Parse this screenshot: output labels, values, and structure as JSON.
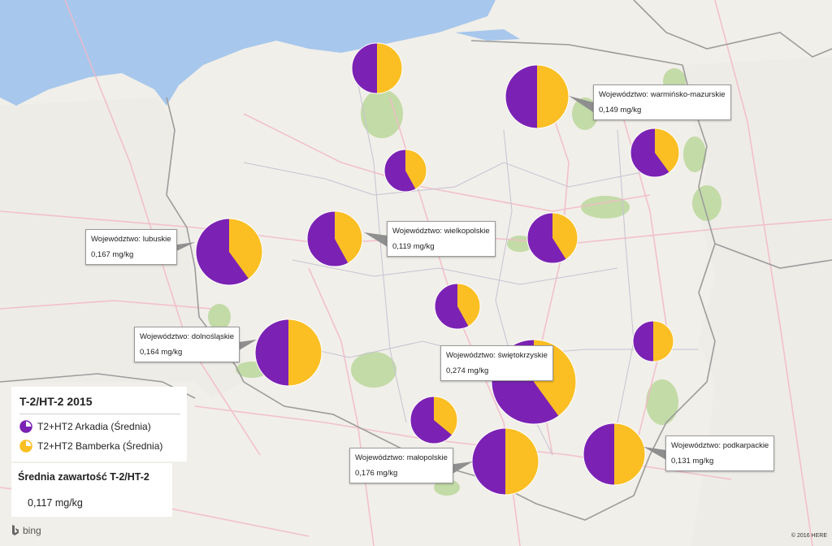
{
  "legend": {
    "title": "T-2/HT-2 2015",
    "series": [
      {
        "label": "T2+HT2 Arkadia (Średnia)",
        "color": "#7b22b4",
        "icon": "pie-purple-icon"
      },
      {
        "label": "T2+HT2 Bamberka (Średnia)",
        "color": "#fbbf23",
        "icon": "pie-yellow-icon"
      }
    ]
  },
  "summary": {
    "title": "Średnia zawartość T-2/HT-2",
    "value": "0,117 mg/kg"
  },
  "callouts": [
    {
      "region": "Województwo: warmińsko-mazurskie",
      "value": "0,149 mg/kg"
    },
    {
      "region": "Województwo: lubuskie",
      "value": "0,167 mg/kg"
    },
    {
      "region": "Województwo: wielkopolskie",
      "value": "0,119 mg/kg"
    },
    {
      "region": "Województwo: dolnośląskie",
      "value": "0,164 mg/kg"
    },
    {
      "region": "Województwo: świętokrzyskie",
      "value": "0,274 mg/kg"
    },
    {
      "region": "Województwo: małopolskie",
      "value": "0,176 mg/kg"
    },
    {
      "region": "Województwo: podkarpackie",
      "value": "0,131 mg/kg"
    }
  ],
  "pies": [
    {
      "arkadia": 0.5,
      "bamberka": 0.5
    },
    {
      "arkadia": 0.5,
      "bamberka": 0.5
    },
    {
      "arkadia": 0.58,
      "bamberka": 0.42
    },
    {
      "arkadia": 0.6,
      "bamberka": 0.4
    },
    {
      "arkadia": 0.6,
      "bamberka": 0.4
    },
    {
      "arkadia": 0.58,
      "bamberka": 0.42
    },
    {
      "arkadia": 0.59,
      "bamberka": 0.41
    },
    {
      "arkadia": 0.58,
      "bamberka": 0.42
    },
    {
      "arkadia": 0.5,
      "bamberka": 0.5
    },
    {
      "arkadia": 0.6,
      "bamberka": 0.4
    },
    {
      "arkadia": 0.5,
      "bamberka": 0.5
    },
    {
      "arkadia": 0.64,
      "bamberka": 0.36
    },
    {
      "arkadia": 0.5,
      "bamberka": 0.5
    },
    {
      "arkadia": 0.5,
      "bamberka": 0.5
    },
    {
      "arkadia": 0.56,
      "bamberka": 0.44
    }
  ],
  "attribution": {
    "provider": "bing",
    "copyright": "© 2016 HERE"
  },
  "colors": {
    "water": "#a7c7ec",
    "land": "#f1efe9",
    "neighbor": "#e8e6e1",
    "forest": "#c3dba7",
    "border": "#9c9c9c",
    "road": "#f2b9c7"
  }
}
